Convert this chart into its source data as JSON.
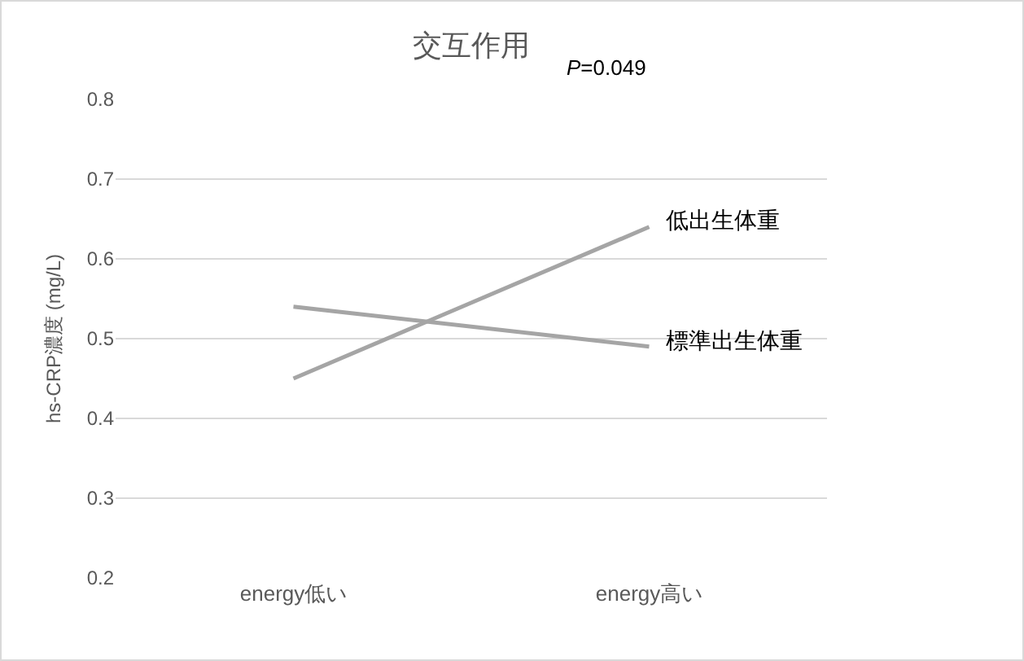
{
  "chart_data": {
    "type": "line",
    "title": "交互作用",
    "ylabel": "hs-CRP濃度 (mg/L)",
    "annotations": [
      "P=0.049"
    ],
    "categories": [
      "energy低い",
      "energy高い"
    ],
    "series": [
      {
        "name": "低出生体重",
        "color": "#a5a5a5",
        "values": [
          0.45,
          0.64
        ]
      },
      {
        "name": "標準出生体重",
        "color": "#a5a5a5",
        "values": [
          0.54,
          0.49
        ]
      }
    ],
    "ylim": [
      0.2,
      0.8
    ],
    "yticks": [
      0.2,
      0.3,
      0.4,
      0.5,
      0.6,
      0.7,
      0.8
    ],
    "grid": "y",
    "legend": false,
    "marker": "none",
    "line_style": "solid"
  }
}
